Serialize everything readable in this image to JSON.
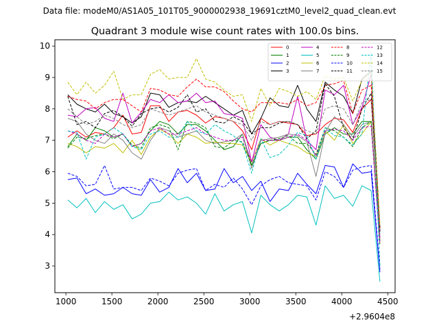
{
  "chart_data": {
    "type": "line",
    "suptitle": "Data file: modeM0/AS1A05_101T05_9000002938_19691cztM0_level2_quad_clean.evt",
    "title": "Quadrant 3 module wise count rates with 100.0s bins.",
    "xlabel": "",
    "ylabel": "",
    "x_offset_label": "+2.9604e8",
    "xlim": [
      880,
      4580
    ],
    "ylim": [
      2.15,
      10.2
    ],
    "xticks": [
      1000,
      1500,
      2000,
      2500,
      3000,
      3500,
      4000,
      4500
    ],
    "xtick_labels": [
      "1000",
      "1500",
      "2000",
      "2500",
      "3000",
      "3500",
      "4000",
      "4500"
    ],
    "yticks": [
      3,
      4,
      5,
      6,
      7,
      8,
      9,
      10
    ],
    "ytick_labels": [
      "3",
      "4",
      "5",
      "6",
      "7",
      "8",
      "9",
      "10"
    ],
    "legend_location": "top-right",
    "x": [
      1020,
      1120,
      1220,
      1320,
      1420,
      1520,
      1620,
      1720,
      1820,
      1920,
      2020,
      2120,
      2220,
      2320,
      2420,
      2520,
      2620,
      2720,
      2820,
      2920,
      3020,
      3120,
      3220,
      3320,
      3420,
      3520,
      3620,
      3720,
      3820,
      3920,
      4020,
      4120,
      4220,
      4320,
      4415
    ],
    "series": [
      {
        "name": "0",
        "color": "#ff0000",
        "dash": "solid",
        "values": [
          7.1,
          7.3,
          7.1,
          7.25,
          7.2,
          7.4,
          7.8,
          7.2,
          7.25,
          8.1,
          8.1,
          7.6,
          7.9,
          7.95,
          7.8,
          7.55,
          7.75,
          7.7,
          7.6,
          7.3,
          6.7,
          7.7,
          7.5,
          7.6,
          7.55,
          7.5,
          7.15,
          7.2,
          7.5,
          7.7,
          7.65,
          7.25,
          8.0,
          8.3,
          4.1
        ]
      },
      {
        "name": "1",
        "color": "#008000",
        "dash": "solid",
        "values": [
          6.8,
          7.2,
          7.0,
          7.4,
          7.3,
          7.1,
          7.2,
          6.8,
          6.9,
          7.3,
          7.6,
          7.5,
          7.2,
          7.5,
          7.5,
          7.3,
          7.0,
          6.7,
          6.8,
          7.2,
          6.2,
          6.9,
          7.0,
          7.0,
          7.1,
          7.1,
          6.7,
          6.4,
          7.2,
          7.4,
          7.2,
          7.2,
          7.6,
          7.6,
          3.8
        ]
      },
      {
        "name": "2",
        "color": "#0000ff",
        "dash": "solid",
        "values": [
          5.75,
          5.8,
          5.3,
          5.45,
          5.25,
          5.3,
          5.5,
          5.3,
          5.25,
          5.75,
          5.35,
          5.5,
          6.1,
          5.65,
          5.95,
          5.4,
          5.45,
          6.1,
          5.65,
          5.85,
          5.4,
          5.7,
          5.05,
          5.45,
          5.4,
          5.95,
          5.6,
          5.3,
          6.2,
          6.15,
          5.5,
          6.25,
          5.95,
          6.0,
          2.8
        ]
      },
      {
        "name": "3",
        "color": "#000000",
        "dash": "solid",
        "values": [
          8.45,
          8.15,
          8.0,
          7.9,
          8.15,
          7.85,
          7.75,
          7.55,
          7.75,
          8.5,
          8.45,
          8.05,
          8.2,
          8.25,
          8.2,
          8.4,
          8.2,
          8.0,
          7.8,
          7.95,
          7.2,
          7.7,
          8.35,
          8.1,
          8.05,
          8.75,
          8.0,
          7.6,
          8.85,
          8.6,
          8.4,
          7.85,
          8.95,
          9.2,
          4.2
        ]
      },
      {
        "name": "4",
        "color": "#bf00bf",
        "dash": "solid",
        "values": [
          7.8,
          7.75,
          8.0,
          8.05,
          7.7,
          7.6,
          8.5,
          7.55,
          7.9,
          8.3,
          8.2,
          8.45,
          8.2,
          8.25,
          8.5,
          8.2,
          8.25,
          7.85,
          7.8,
          7.7,
          6.3,
          7.5,
          7.1,
          7.0,
          7.2,
          8.4,
          7.0,
          6.7,
          8.6,
          8.45,
          8.75,
          7.5,
          8.05,
          9.1,
          3.9
        ]
      },
      {
        "name": "5",
        "color": "#00bfbf",
        "dash": "solid",
        "values": [
          5.1,
          4.85,
          5.15,
          4.7,
          5.05,
          4.8,
          4.95,
          4.5,
          4.65,
          5.0,
          5.05,
          5.35,
          5.1,
          5.2,
          5.0,
          4.65,
          5.3,
          4.75,
          4.95,
          5.05,
          4.05,
          5.25,
          4.95,
          4.75,
          4.95,
          5.25,
          5.2,
          4.3,
          5.55,
          5.15,
          5.25,
          4.9,
          5.55,
          5.4,
          2.5
        ]
      },
      {
        "name": "6",
        "color": "#bfbf00",
        "dash": "solid",
        "values": [
          6.9,
          6.8,
          6.6,
          6.8,
          6.75,
          6.9,
          6.6,
          7.0,
          6.55,
          7.1,
          7.35,
          7.2,
          6.9,
          7.2,
          7.1,
          6.9,
          6.95,
          6.9,
          6.9,
          6.85,
          6.3,
          7.05,
          6.85,
          7.0,
          6.9,
          6.8,
          6.6,
          6.5,
          7.3,
          7.0,
          7.5,
          6.9,
          7.2,
          7.6,
          3.7
        ]
      },
      {
        "name": "7",
        "color": "#808080",
        "dash": "solid",
        "values": [
          7.7,
          7.6,
          7.2,
          7.0,
          6.9,
          7.2,
          7.0,
          6.6,
          6.4,
          7.0,
          7.4,
          7.3,
          7.1,
          7.2,
          7.3,
          7.0,
          6.9,
          6.95,
          7.0,
          7.2,
          6.1,
          7.0,
          7.05,
          7.1,
          7.2,
          7.15,
          6.95,
          5.85,
          7.25,
          7.75,
          7.5,
          7.1,
          7.5,
          7.6,
          3.8
        ]
      },
      {
        "name": "8",
        "color": "#ff0000",
        "dash": "dashed",
        "values": [
          8.4,
          8.3,
          8.25,
          8.0,
          8.2,
          8.3,
          8.3,
          8.1,
          7.9,
          8.65,
          8.6,
          8.45,
          8.4,
          8.7,
          8.95,
          8.7,
          8.7,
          8.55,
          8.25,
          8.0,
          7.9,
          8.2,
          8.2,
          8.2,
          8.15,
          8.3,
          8.1,
          8.2,
          8.75,
          8.8,
          8.9,
          7.85,
          8.6,
          8.75,
          4.2
        ]
      },
      {
        "name": "9",
        "color": "#008000",
        "dash": "dashed",
        "values": [
          6.75,
          7.1,
          7.05,
          7.15,
          7.2,
          7.05,
          7.2,
          6.85,
          6.75,
          7.4,
          7.5,
          7.4,
          6.7,
          7.6,
          7.55,
          7.4,
          6.8,
          6.75,
          7.0,
          6.95,
          6.2,
          6.9,
          7.0,
          7.05,
          7.15,
          6.9,
          6.9,
          6.55,
          7.4,
          7.3,
          7.1,
          6.8,
          7.4,
          7.6,
          3.7
        ]
      },
      {
        "name": "10",
        "color": "#0000ff",
        "dash": "dashed",
        "values": [
          5.95,
          5.85,
          5.55,
          5.6,
          6.2,
          5.45,
          5.5,
          5.5,
          5.4,
          5.8,
          5.7,
          5.55,
          5.95,
          6.05,
          6.1,
          5.4,
          5.6,
          5.5,
          5.8,
          5.45,
          4.95,
          5.55,
          5.75,
          5.85,
          5.65,
          5.6,
          5.55,
          5.1,
          6.0,
          5.85,
          5.5,
          6.05,
          6.15,
          6.2,
          2.9
        ]
      },
      {
        "name": "11",
        "color": "#000000",
        "dash": "dashed",
        "values": [
          8.4,
          7.5,
          7.6,
          7.4,
          7.85,
          7.95,
          7.75,
          7.45,
          7.85,
          8.0,
          8.05,
          7.9,
          8.05,
          8.45,
          7.9,
          8.0,
          7.6,
          7.55,
          7.75,
          7.6,
          7.2,
          7.4,
          7.4,
          7.55,
          7.6,
          7.5,
          7.05,
          7.3,
          8.8,
          8.4,
          7.4,
          7.0,
          8.0,
          8.5,
          4.1
        ]
      },
      {
        "name": "12",
        "color": "#bf00bf",
        "dash": "dashed",
        "values": [
          7.3,
          7.2,
          7.0,
          6.9,
          7.2,
          7.1,
          7.2,
          6.8,
          6.9,
          7.3,
          7.4,
          7.2,
          7.2,
          7.3,
          7.4,
          7.2,
          7.1,
          7.0,
          7.0,
          7.1,
          6.3,
          7.0,
          7.0,
          7.0,
          7.1,
          7.2,
          7.0,
          6.5,
          7.3,
          7.35,
          7.3,
          7.0,
          7.4,
          7.45,
          3.7
        ]
      },
      {
        "name": "13",
        "color": "#00bfbf",
        "dash": "dashed",
        "values": [
          7.3,
          7.25,
          6.4,
          7.1,
          7.2,
          7.4,
          7.2,
          6.8,
          6.7,
          7.2,
          7.3,
          7.1,
          7.1,
          7.6,
          7.3,
          7.2,
          7.5,
          7.3,
          7.15,
          6.9,
          5.95,
          7.05,
          6.45,
          6.55,
          6.85,
          7.25,
          7.15,
          6.4,
          7.4,
          7.15,
          7.1,
          6.85,
          7.2,
          9.8,
          3.0
        ]
      },
      {
        "name": "14",
        "color": "#bfbf00",
        "dash": "dashed",
        "values": [
          8.85,
          8.45,
          8.85,
          8.5,
          8.75,
          9.2,
          8.3,
          8.45,
          8.45,
          9.1,
          9.25,
          8.95,
          9.0,
          9.0,
          9.6,
          8.95,
          8.85,
          8.6,
          8.4,
          8.45,
          7.6,
          8.65,
          8.1,
          8.65,
          8.55,
          8.4,
          8.55,
          8.3,
          9.05,
          8.95,
          9.0,
          8.25,
          8.9,
          9.15,
          4.3
        ]
      },
      {
        "name": "15",
        "color": "#808080",
        "dash": "dashed",
        "values": [
          8.0,
          7.75,
          7.5,
          7.6,
          7.8,
          7.7,
          7.5,
          7.4,
          7.5,
          8.0,
          7.9,
          7.8,
          7.9,
          8.0,
          8.1,
          7.9,
          7.8,
          7.7,
          7.6,
          7.5,
          7.0,
          7.6,
          7.5,
          7.6,
          7.6,
          7.5,
          7.3,
          7.2,
          8.0,
          8.1,
          8.0,
          7.5,
          8.2,
          8.3,
          4.0
        ]
      }
    ]
  }
}
